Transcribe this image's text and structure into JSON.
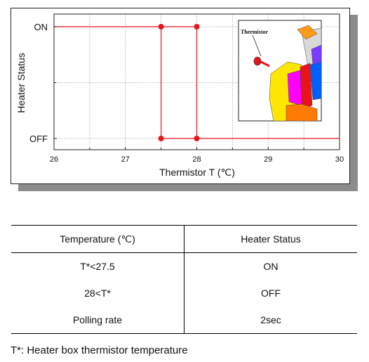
{
  "chart_data": {
    "type": "line",
    "xlabel": "Thermistor T (℃)",
    "ylabel": "Heater Status",
    "xlim": [
      26,
      30
    ],
    "x_ticks": [
      "26",
      "27",
      "28",
      "29",
      "30"
    ],
    "y_categories": [
      "OFF",
      "ON"
    ],
    "grid": true,
    "colors": {
      "series": "#e8141c",
      "grid": "#9a9a9a"
    },
    "series": [
      {
        "x": [
          26,
          28
        ],
        "y": [
          "ON",
          "ON"
        ]
      },
      {
        "x": [
          27.5,
          30
        ],
        "y": [
          "OFF",
          "OFF"
        ]
      },
      {
        "x": [
          27.5,
          27.5
        ],
        "y": [
          "OFF",
          "ON"
        ]
      },
      {
        "x": [
          28,
          28
        ],
        "y": [
          "OFF",
          "ON"
        ]
      }
    ],
    "markers": [
      {
        "x": 27.5,
        "y": "ON"
      },
      {
        "x": 28,
        "y": "ON"
      },
      {
        "x": 27.5,
        "y": "OFF"
      },
      {
        "x": 28,
        "y": "OFF"
      }
    ],
    "inset": {
      "label": "Thermistor",
      "colors": [
        "#ffe600",
        "#ff7a00",
        "#ff00ff",
        "#0060ff",
        "#7a3cff",
        "#e8141c",
        "#d9d9d9"
      ]
    }
  },
  "table": {
    "headers": [
      "Temperature (℃)",
      "Heater Status"
    ],
    "rows": [
      [
        "T*<27.5",
        "ON"
      ],
      [
        "28<T*",
        "OFF"
      ],
      [
        "Polling rate",
        "2sec"
      ]
    ]
  },
  "footnote": "T*: Heater box thermistor temperature"
}
